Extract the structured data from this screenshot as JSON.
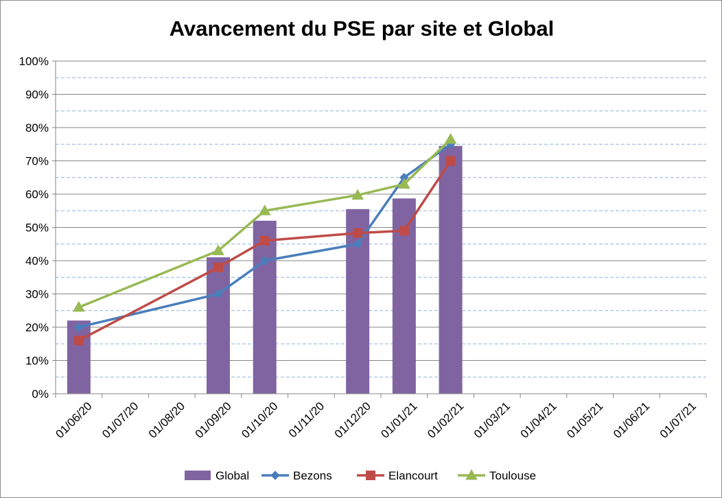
{
  "chart_data": {
    "type": "bar",
    "title": "Avancement du PSE par site et Global",
    "xlabel": "",
    "ylabel": "",
    "ylim": [
      0,
      100
    ],
    "y_ticks": [
      "0%",
      "10%",
      "20%",
      "30%",
      "40%",
      "50%",
      "60%",
      "70%",
      "80%",
      "90%",
      "100%"
    ],
    "x_ticks": [
      "01/06/20",
      "01/07/20",
      "01/08/20",
      "01/09/20",
      "01/10/20",
      "01/11/20",
      "01/12/20",
      "01/01/21",
      "01/02/21",
      "01/03/21",
      "01/04/21",
      "01/05/21",
      "01/06/21",
      "01/07/21"
    ],
    "grid": "major solid, minor dashed",
    "legend_position": "bottom",
    "series": [
      {
        "name": "Global",
        "kind": "bar",
        "color": "#8064a2",
        "points": [
          {
            "x": "01/06/20",
            "y": 22
          },
          {
            "x": "01/09/20",
            "y": 41
          },
          {
            "x": "01/10/20",
            "y": 52
          },
          {
            "x": "01/12/20",
            "y": 55.5
          },
          {
            "x": "01/01/21",
            "y": 58.7
          },
          {
            "x": "01/02/21",
            "y": 74.5
          }
        ]
      },
      {
        "name": "Bezons",
        "kind": "line",
        "marker": "diamond",
        "color": "#4a7ebb",
        "points": [
          {
            "x": "01/06/20",
            "y": 20
          },
          {
            "x": "01/09/20",
            "y": 30
          },
          {
            "x": "01/10/20",
            "y": 40
          },
          {
            "x": "01/12/20",
            "y": 45
          },
          {
            "x": "01/01/21",
            "y": 65
          },
          {
            "x": "01/02/21",
            "y": 75
          }
        ]
      },
      {
        "name": "Elancourt",
        "kind": "line",
        "marker": "square",
        "color": "#be4b48",
        "points": [
          {
            "x": "01/06/20",
            "y": 16
          },
          {
            "x": "01/09/20",
            "y": 38
          },
          {
            "x": "01/10/20",
            "y": 46
          },
          {
            "x": "01/12/20",
            "y": 48.3
          },
          {
            "x": "01/01/21",
            "y": 49
          },
          {
            "x": "01/02/21",
            "y": 70
          }
        ]
      },
      {
        "name": "Toulouse",
        "kind": "line",
        "marker": "triangle",
        "color": "#98b954",
        "points": [
          {
            "x": "01/06/20",
            "y": 26
          },
          {
            "x": "01/09/20",
            "y": 43
          },
          {
            "x": "01/10/20",
            "y": 55
          },
          {
            "x": "01/12/20",
            "y": 59.7
          },
          {
            "x": "01/01/21",
            "y": 63
          },
          {
            "x": "01/02/21",
            "y": 76.5
          }
        ]
      }
    ]
  }
}
